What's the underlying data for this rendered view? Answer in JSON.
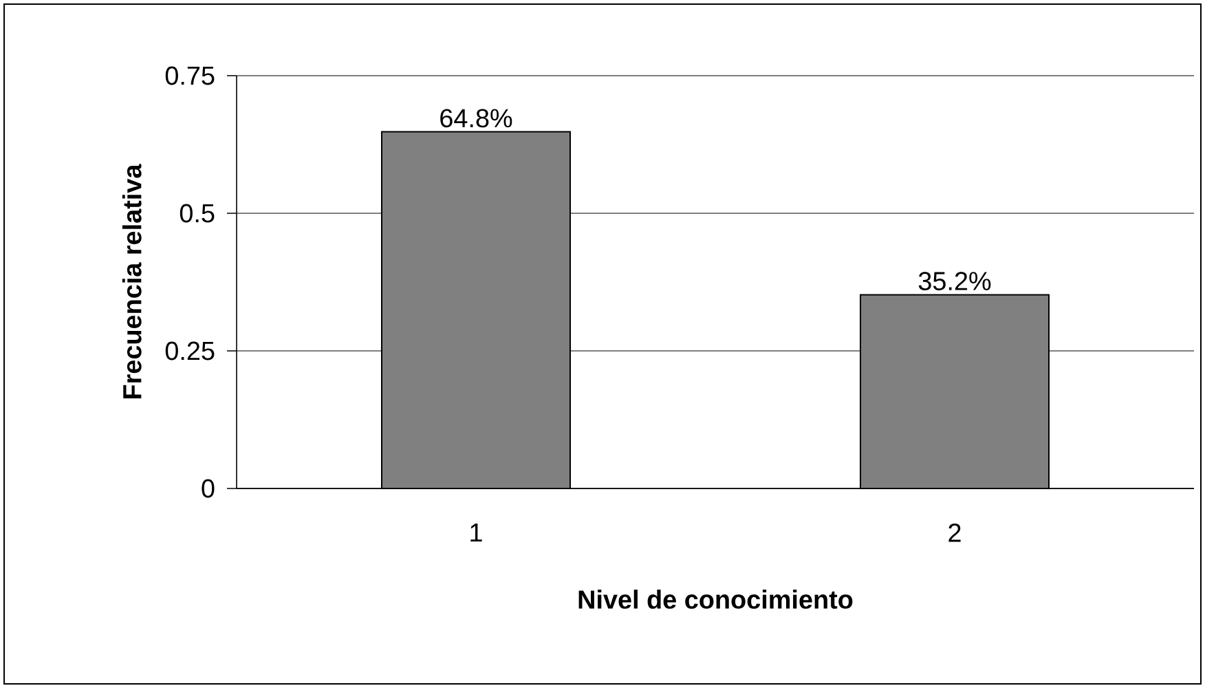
{
  "chart_data": {
    "type": "bar",
    "xlabel": "Nivel de conocimiento",
    "ylabel": "Frecuencia relativa",
    "categories": [
      "1",
      "2"
    ],
    "values": [
      0.648,
      0.352
    ],
    "color": "#808080",
    "value_labels": [
      "64.8%",
      "35.2%"
    ],
    "ylim": [
      0,
      0.75
    ],
    "yticks": [
      0,
      0.25,
      0.5,
      0.75
    ],
    "grid": "y"
  }
}
